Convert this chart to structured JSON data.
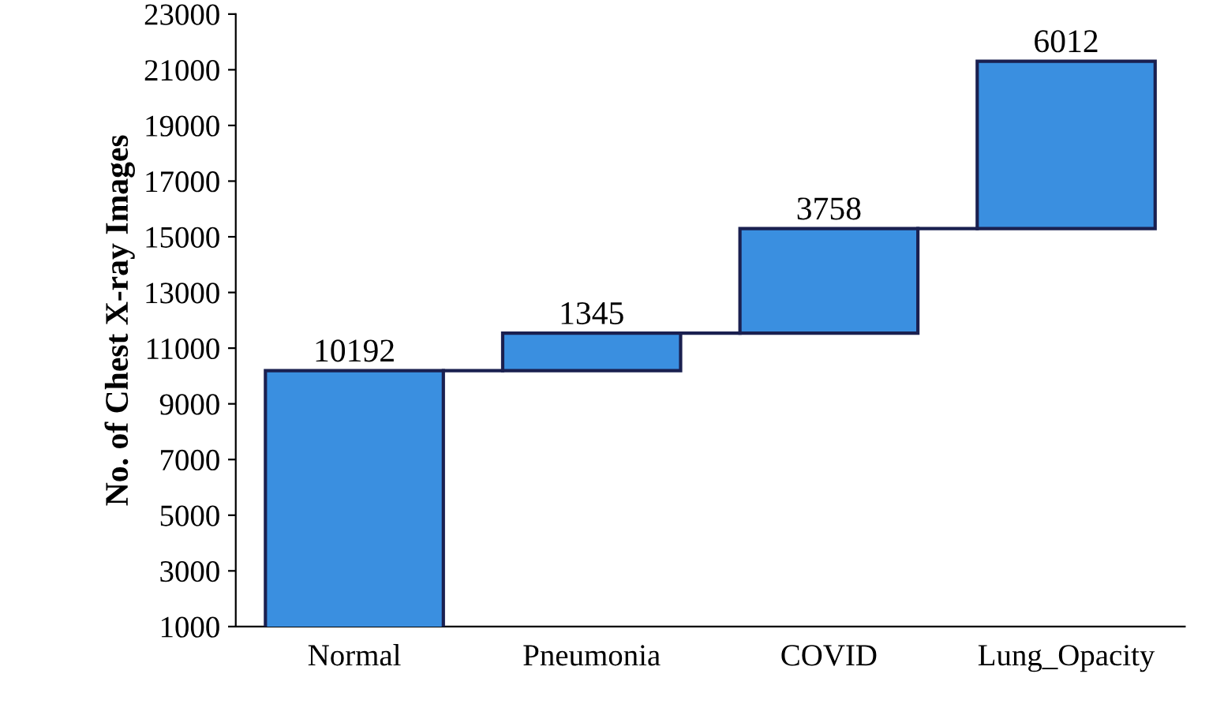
{
  "chart_data": {
    "type": "bar",
    "ylabel": "No. of Chest X-ray Images",
    "categories": [
      "Normal",
      "Pneumonia",
      "COVID",
      "Lung_Opacity"
    ],
    "values": [
      10192,
      1345,
      3758,
      6012
    ],
    "base": [
      0,
      10192,
      11537,
      15295
    ],
    "color": "#3a8fe0",
    "ylim": [
      1000,
      23000
    ],
    "yticks": [
      1000,
      3000,
      5000,
      7000,
      9000,
      11000,
      13000,
      15000,
      17000,
      19000,
      21000,
      23000
    ],
    "data_labels": true,
    "grid": false,
    "legend": false
  }
}
